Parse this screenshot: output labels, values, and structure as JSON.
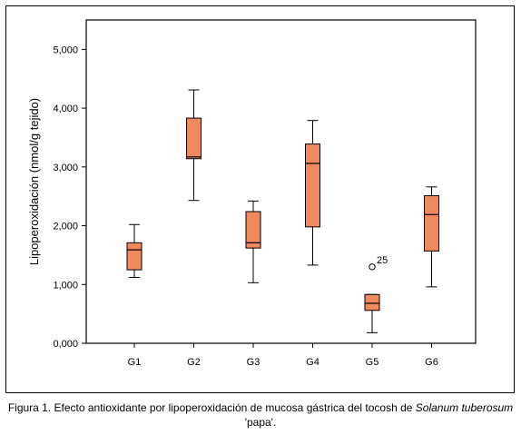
{
  "chart_data": {
    "type": "boxplot",
    "ylabel": "Lipoperoxidación (nmol/g tejido)",
    "xlabel": "",
    "ylim": [
      0,
      5500
    ],
    "yticks": [
      0,
      1000,
      2000,
      3000,
      4000,
      5000
    ],
    "ytick_labels": [
      "0,000",
      "1,000",
      "2,000",
      "3,000",
      "4,000",
      "5,000"
    ],
    "grid": false,
    "box_color": "#F08A5D",
    "categories": [
      "G1",
      "G2",
      "G3",
      "G4",
      "G5",
      "G6"
    ],
    "boxes": [
      {
        "label": "G1",
        "min": 1120,
        "q1": 1250,
        "median": 1590,
        "q3": 1710,
        "max": 2020
      },
      {
        "label": "G2",
        "min": 2430,
        "q1": 3140,
        "median": 3170,
        "q3": 3830,
        "max": 4310
      },
      {
        "label": "G3",
        "min": 1030,
        "q1": 1620,
        "median": 1710,
        "q3": 2240,
        "max": 2420
      },
      {
        "label": "G4",
        "min": 1330,
        "q1": 1980,
        "median": 3060,
        "q3": 3390,
        "max": 3790
      },
      {
        "label": "G5",
        "min": 180,
        "q1": 560,
        "median": 680,
        "q3": 830,
        "max": 830
      },
      {
        "label": "G6",
        "min": 960,
        "q1": 1570,
        "median": 2190,
        "q3": 2510,
        "max": 2660
      }
    ],
    "outliers": [
      {
        "group": "G5",
        "value": 1300,
        "label": "25"
      }
    ]
  },
  "caption": {
    "prefix": "Figura 1. Efecto antioxidante por lipoperoxidación de mucosa gástrica del tocosh de ",
    "species": "Solanum tuberosum",
    "suffix": " 'papa'."
  }
}
